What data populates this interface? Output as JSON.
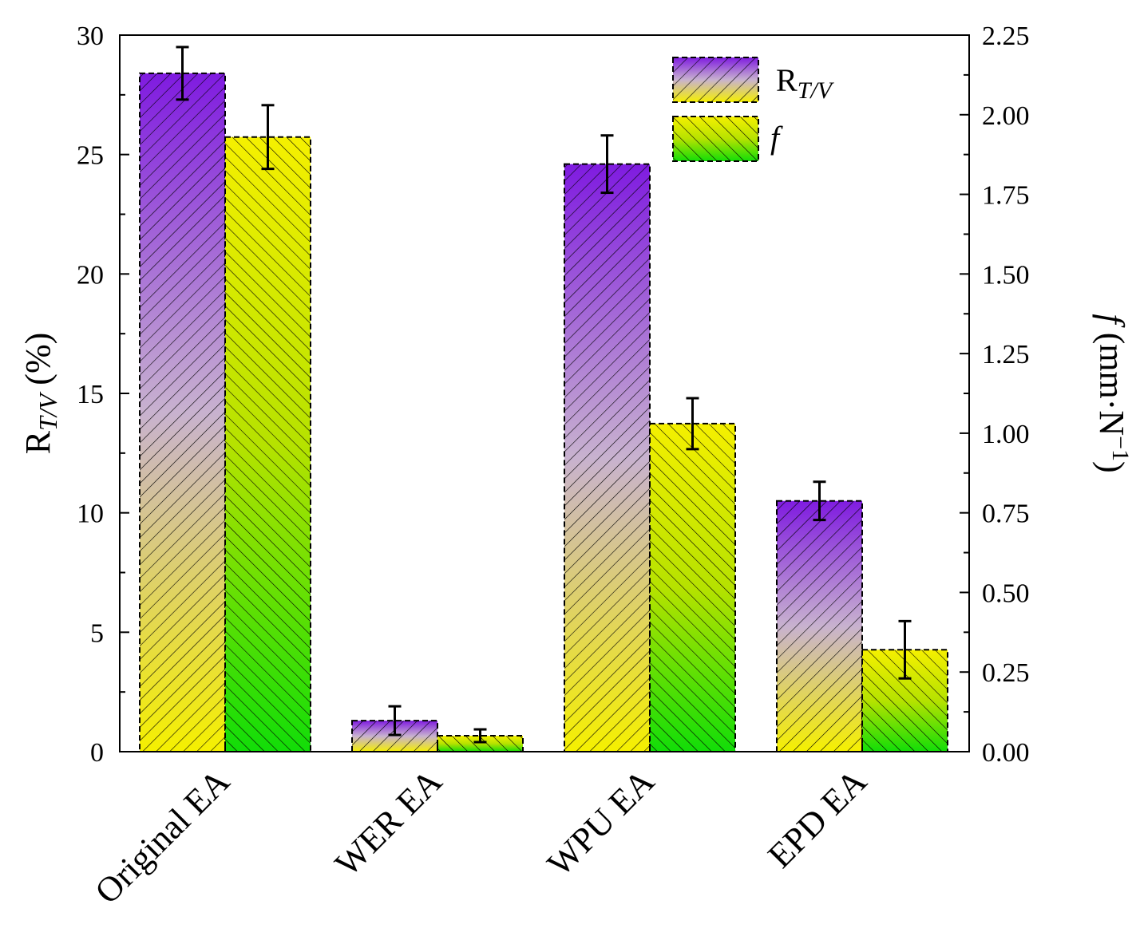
{
  "chart_data": {
    "type": "bar",
    "categories": [
      "Original EA",
      "WER EA",
      "WPU EA",
      "EPD EA"
    ],
    "series": [
      {
        "name": "R_T/V",
        "label_main": "R",
        "label_sub": "T/V",
        "axis": "left",
        "values": [
          28.4,
          1.3,
          24.6,
          10.5
        ],
        "errors": [
          1.1,
          0.6,
          1.2,
          0.8
        ],
        "gradient": [
          "#7f1be0",
          "#c8b2cf",
          "#f5f000"
        ]
      },
      {
        "name": "f",
        "label_main": "f",
        "axis": "right",
        "values": [
          1.93,
          0.05,
          1.03,
          0.32
        ],
        "errors": [
          0.1,
          0.02,
          0.08,
          0.09
        ],
        "gradient": [
          "#f5f000",
          "#b6e200",
          "#12dd08"
        ]
      }
    ],
    "left_axis": {
      "label_main": "R",
      "label_sub": "T/V",
      "label_unit": " (%)",
      "range": [
        0,
        30
      ],
      "ticks": [
        "0",
        "5",
        "10",
        "15",
        "20",
        "25",
        "30"
      ]
    },
    "right_axis": {
      "label_italic": "f",
      "label_unit": " (mm·N",
      "label_exp": "−1",
      "label_close": ")",
      "range": [
        0,
        2.25
      ],
      "ticks": [
        "0.00",
        "0.25",
        "0.50",
        "0.75",
        "1.00",
        "1.25",
        "1.50",
        "1.75",
        "2.00",
        "2.25"
      ]
    },
    "legend_position": "top-right",
    "grid": false
  }
}
